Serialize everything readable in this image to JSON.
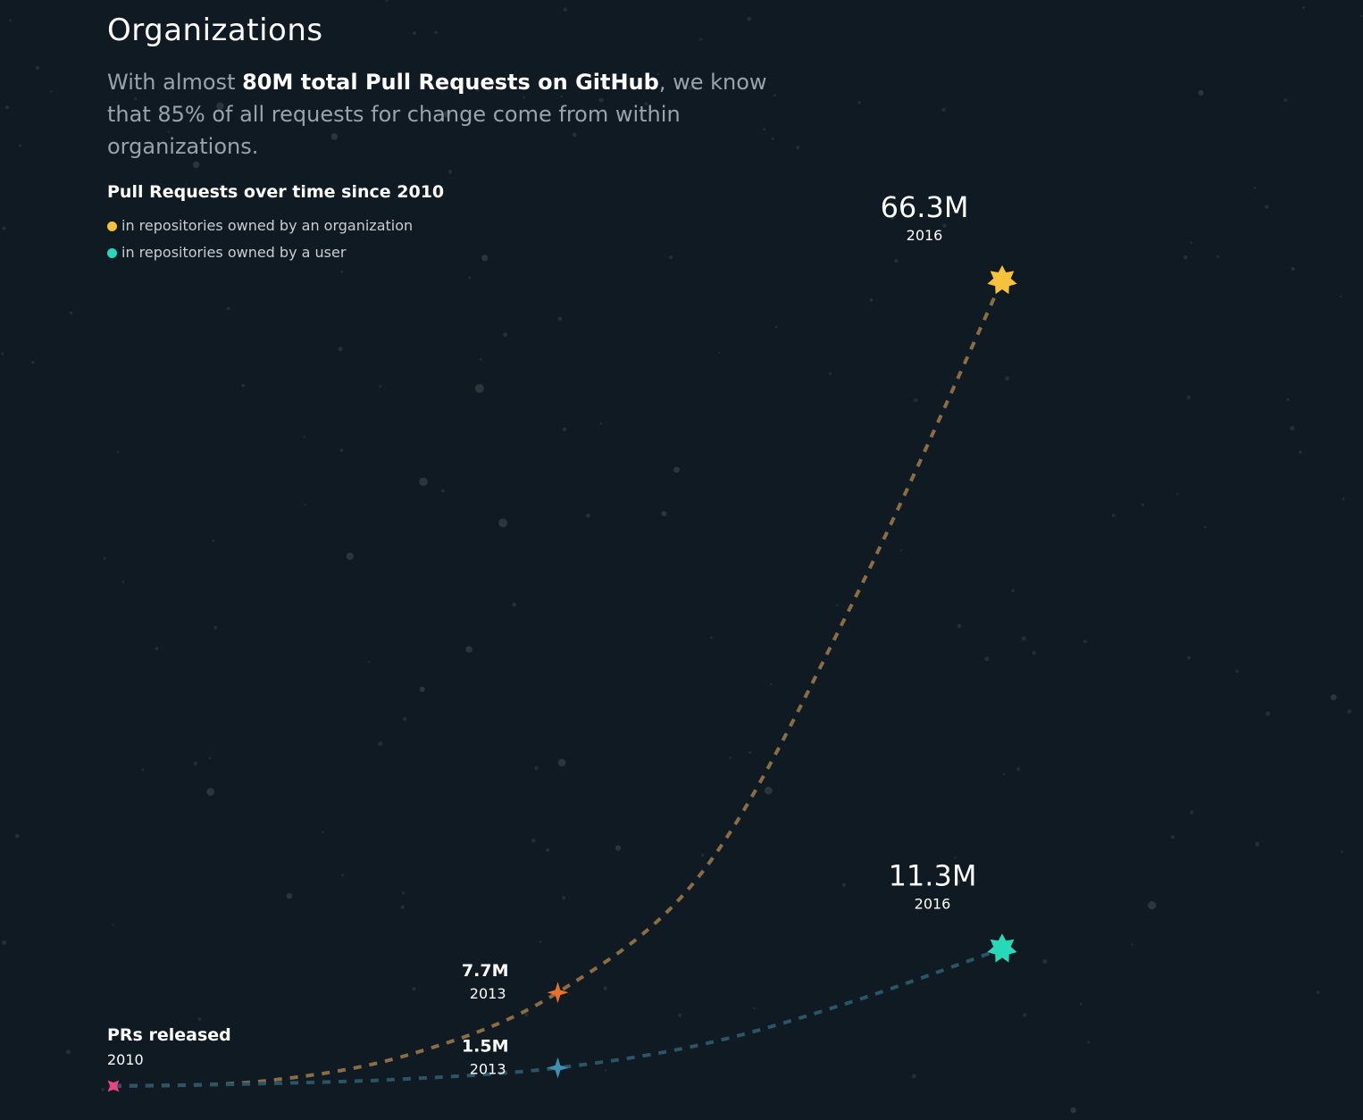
{
  "header": {
    "title": "Organizations",
    "intro_before": "With almost ",
    "intro_bold": "80M total Pull Requests on GitHub",
    "intro_after": ", we know that 85% of all requests for change come from within organizations."
  },
  "colors": {
    "background": "#0f1a22",
    "organization": "#f6c13b",
    "organization_line": "#8a6d45",
    "user": "#27d9b9",
    "user_line": "#2b5566",
    "release": "#e8457f",
    "org_2013_marker": "#e9702a",
    "user_2013_marker": "#3f8fb1"
  },
  "chart_data": {
    "type": "line",
    "title": "Pull Requests over time since 2010",
    "x": [
      2010,
      2011,
      2012,
      2013,
      2014,
      2015,
      2016
    ],
    "xlim": [
      2010,
      2016
    ],
    "ylim": [
      0,
      66.3
    ],
    "grid": false,
    "legend_position": "top-left",
    "series": [
      {
        "key": "organization",
        "name": "in repositories owned by an organization",
        "color": "#f6c13b",
        "values": [
          0,
          0.4,
          2.6,
          7.7,
          18.0,
          40.0,
          66.3
        ]
      },
      {
        "key": "user",
        "name": "in repositories owned by a user",
        "color": "#27d9b9",
        "values": [
          0,
          0.2,
          0.6,
          1.5,
          3.5,
          7.0,
          11.3
        ]
      }
    ],
    "annotations": [
      {
        "id": "release",
        "series": "organization",
        "x": 2010,
        "value_label": "PRs released",
        "year_label": "2010",
        "marker": "release",
        "color": "#e8457f",
        "anchor": "start"
      },
      {
        "id": "org-2013",
        "series": "organization",
        "x": 2013,
        "value_label": "7.7M",
        "year_label": "2013",
        "marker": "sparkle",
        "color": "#e9702a",
        "anchor": "end"
      },
      {
        "id": "user-2013",
        "series": "user",
        "x": 2013,
        "value_label": "1.5M",
        "year_label": "2013",
        "marker": "sparkle",
        "color": "#3f8fb1",
        "anchor": "end"
      },
      {
        "id": "org-2016",
        "series": "organization",
        "x": 2016,
        "value_label": "66.3M",
        "year_label": "2016",
        "marker": "star",
        "color": "#f6c13b",
        "anchor": "big"
      },
      {
        "id": "user-2016",
        "series": "user",
        "x": 2016,
        "value_label": "11.3M",
        "year_label": "2016",
        "marker": "star",
        "color": "#27d9b9",
        "anchor": "big"
      }
    ]
  }
}
